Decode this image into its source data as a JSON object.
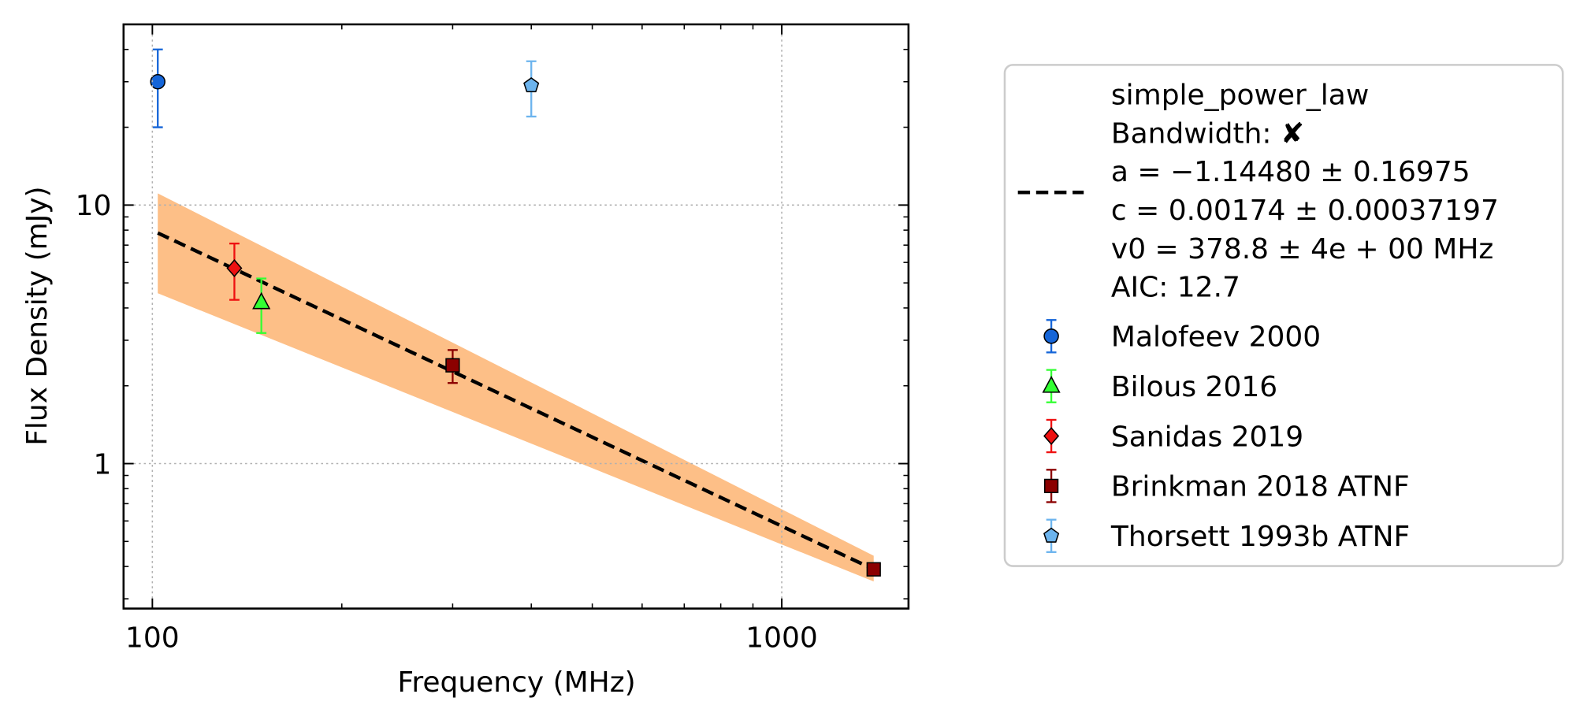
{
  "chart_data": {
    "type": "scatter",
    "xlabel": "Frequency (MHz)",
    "ylabel": "Flux Density (mJy)",
    "xscale": "log",
    "yscale": "log",
    "xlim": [
      90,
      1590
    ],
    "ylim": [
      0.275,
      50
    ],
    "xticks": [
      100,
      1000
    ],
    "yticks": [
      1,
      10
    ],
    "grid": true,
    "legend": "right",
    "fit": {
      "legend_lines": [
        "simple_power_law",
        "Bandwidth: ✘",
        "a = −1.14480 ± 0.16975",
        "c = 0.00174 ± 0.00037197",
        "v0 = 378.8 ± 4e + 00 MHz",
        "AIC: 12.7"
      ],
      "color": "#000000",
      "x": [
        102,
        1400
      ],
      "values": [
        7.8,
        0.39
      ],
      "band_upper": [
        11.1,
        0.44
      ],
      "band_lower": [
        4.56,
        0.35
      ],
      "band_color": "#fdbf87"
    },
    "series": [
      {
        "name": "Malofeev 2000",
        "color": "#1565d8",
        "marker": "circle",
        "x": [
          102
        ],
        "values": [
          30
        ],
        "errors": [
          10
        ]
      },
      {
        "name": "Bilous 2016",
        "color": "#33ff33",
        "marker": "triangle",
        "x": [
          149
        ],
        "values": [
          4.2
        ],
        "errors": [
          1.0
        ]
      },
      {
        "name": "Sanidas 2019",
        "color": "#ee1111",
        "marker": "diamond",
        "x": [
          135
        ],
        "values": [
          5.7
        ],
        "errors": [
          1.4
        ]
      },
      {
        "name": "Brinkman 2018 ATNF",
        "color": "#8b0000",
        "marker": "square",
        "x": [
          300,
          1400
        ],
        "values": [
          2.4,
          0.39
        ],
        "errors": [
          0.35,
          0.02
        ]
      },
      {
        "name": "Thorsett 1993b ATNF",
        "color": "#6cb4ee",
        "marker": "pentagon",
        "x": [
          400
        ],
        "values": [
          29
        ],
        "errors": [
          7
        ]
      }
    ]
  }
}
